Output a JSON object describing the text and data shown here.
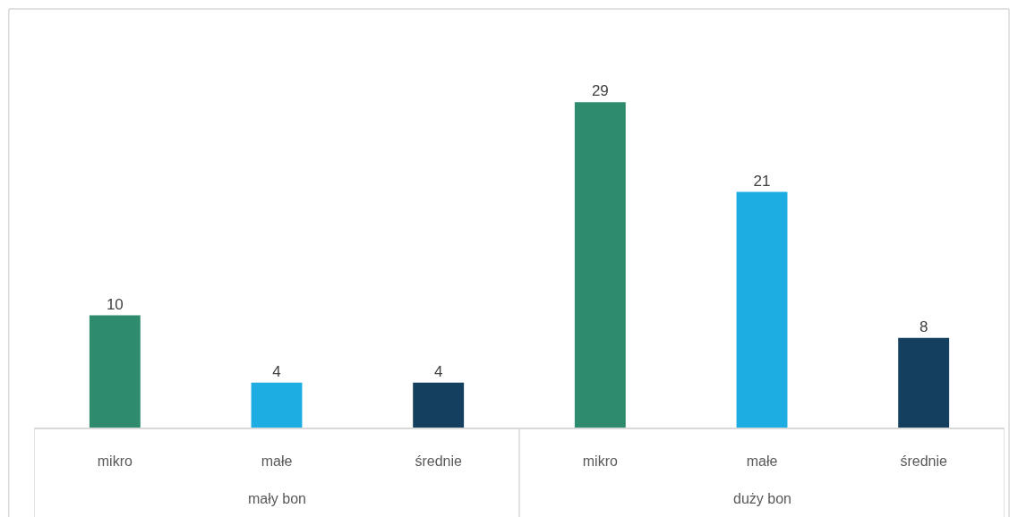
{
  "chart_data": {
    "type": "bar",
    "categories": [
      "mikro",
      "małe",
      "średnie",
      "mikro",
      "małe",
      "średnie"
    ],
    "values": [
      10,
      4,
      4,
      29,
      21,
      8
    ],
    "colors": [
      "#2e8b6e",
      "#1eade3",
      "#143f5f",
      "#2e8b6e",
      "#1eade3",
      "#143f5f"
    ],
    "annotations": [
      "mały bon",
      "duży bon"
    ],
    "data_labels": true
  }
}
